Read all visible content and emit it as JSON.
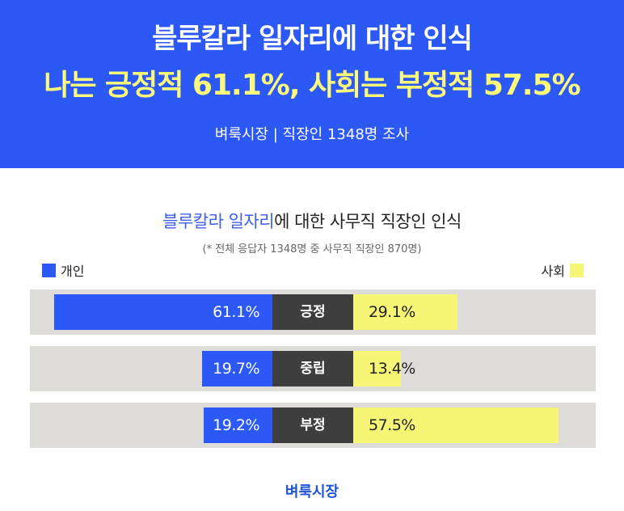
{
  "header": {
    "title": "블루칼라 일자리에 대한 인식",
    "headline": "나는 긍정적 61.1%, 사회는 부정적 57.5%",
    "subtitle": "벼룩시장 | 직장인 1348명 조사"
  },
  "colors": {
    "header_bg": "#2c58f6",
    "individual": "#2c58f6",
    "society": "#f7f575",
    "headline": "#fcfa7a",
    "category_bg": "#3e3e3e",
    "row_bg": "#dedcd8"
  },
  "chart_data": {
    "type": "bar",
    "title_highlight": "블루칼라 일자리",
    "title_rest": "에 대한 사무직 직장인 인식",
    "note": "(* 전체 응답자 1348명 중 사무직 직장인 870명)",
    "categories": [
      "긍정",
      "중립",
      "부정"
    ],
    "series": [
      {
        "name": "개인",
        "values": [
          61.1,
          19.7,
          19.2
        ],
        "labels": [
          "61.1%",
          "19.7%",
          "19.2%"
        ],
        "legend_position": "top-left"
      },
      {
        "name": "사회",
        "values": [
          29.1,
          13.4,
          57.5
        ],
        "labels": [
          "29.1%",
          "13.4%",
          "57.5%"
        ],
        "legend_position": "top-right"
      }
    ],
    "unit": "%"
  },
  "footer": {
    "brand": "벼룩시장"
  }
}
